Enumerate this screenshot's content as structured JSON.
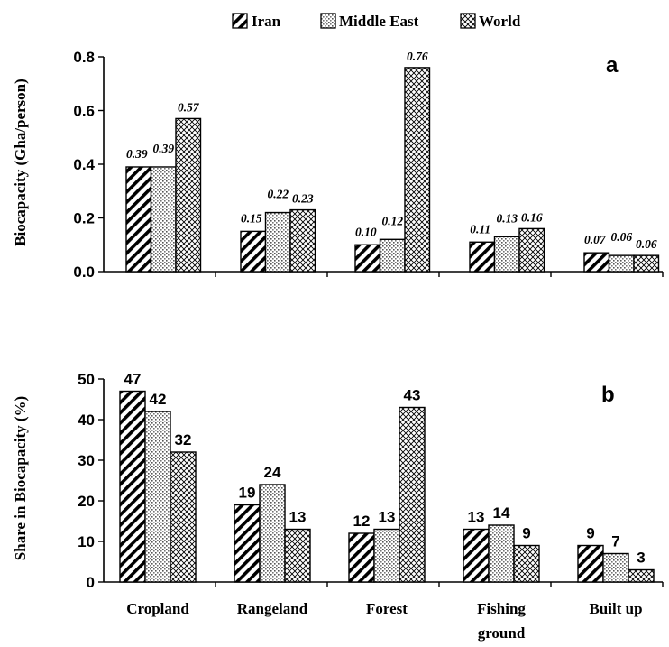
{
  "legend": {
    "items": [
      {
        "label": "Iran",
        "pattern": "diag"
      },
      {
        "label": "Middle East",
        "pattern": "dots"
      },
      {
        "label": "World",
        "pattern": "cross"
      }
    ]
  },
  "colors": {
    "ink": "#000000",
    "background": "#ffffff",
    "dots": "#555555"
  },
  "chart_data": [
    {
      "type": "bar",
      "panel_label": "a",
      "ylabel": "Biocapacity (Gha/person)",
      "xlabel": "",
      "ylim": [
        0,
        0.8
      ],
      "yticks": [
        "0.0",
        "0.2",
        "0.4",
        "0.6",
        "0.8"
      ],
      "ytick_values": [
        0,
        0.2,
        0.4,
        0.6,
        0.8
      ],
      "categories": [
        "Cropland",
        "Rangeland",
        "Forest",
        "Fishing ground",
        "Built up"
      ],
      "series": [
        {
          "name": "Iran",
          "values": [
            0.39,
            0.15,
            0.1,
            0.11,
            0.07
          ],
          "labels": [
            "0.39",
            "0.15",
            "0.10",
            "0.11",
            "0.07"
          ]
        },
        {
          "name": "Middle East",
          "values": [
            0.39,
            0.22,
            0.12,
            0.13,
            0.06
          ],
          "labels": [
            "0.39",
            "0.22",
            "0.12",
            "0.13",
            "0.06"
          ]
        },
        {
          "name": "World",
          "values": [
            0.57,
            0.23,
            0.76,
            0.16,
            0.06
          ],
          "labels": [
            "0.57",
            "0.23",
            "0.76",
            "0.16",
            "0.06"
          ]
        }
      ],
      "grid": false,
      "legend": "top-center"
    },
    {
      "type": "bar",
      "panel_label": "b",
      "ylabel": "Share in Biocapacity (%)",
      "xlabel": "",
      "ylim": [
        0,
        50
      ],
      "yticks": [
        "0",
        "10",
        "20",
        "30",
        "40",
        "50"
      ],
      "ytick_values": [
        0,
        10,
        20,
        30,
        40,
        50
      ],
      "categories": [
        "Cropland",
        "Rangeland",
        "Forest",
        "Fishing ground",
        "Built up"
      ],
      "category_lines": [
        [
          "Cropland"
        ],
        [
          "Rangeland"
        ],
        [
          "Forest"
        ],
        [
          "Fishing",
          "ground"
        ],
        [
          "Built up"
        ]
      ],
      "series": [
        {
          "name": "Iran",
          "values": [
            47,
            19,
            12,
            13,
            9
          ],
          "labels": [
            "47",
            "19",
            "12",
            "13",
            "9"
          ]
        },
        {
          "name": "Middle East",
          "values": [
            42,
            24,
            13,
            14,
            7
          ],
          "labels": [
            "42",
            "24",
            "13",
            "14",
            "7"
          ]
        },
        {
          "name": "World",
          "values": [
            32,
            13,
            43,
            9,
            3
          ],
          "labels": [
            "32",
            "13",
            "43",
            "9",
            "3"
          ]
        }
      ],
      "grid": false
    }
  ]
}
